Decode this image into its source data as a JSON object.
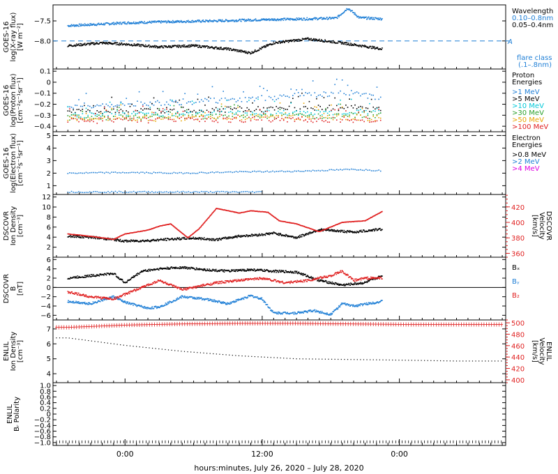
{
  "footer": {
    "xlabel": "hours:minutes, July 26, 2020 – July 28, 2020"
  },
  "time_axis": {
    "ticks": [
      "0:00",
      "12:00",
      "0:00"
    ],
    "tick_hours": [
      0,
      12,
      24
    ]
  },
  "colors": {
    "black": "#000000",
    "blue": "#1f7fd6",
    "cyan": "#00c8d8",
    "green": "#2aa02a",
    "orange": "#e8a400",
    "red": "#e02020",
    "magenta": "#e000e0"
  },
  "chart_data": [
    {
      "panel": "goes-xray",
      "type": "line",
      "ylabel": [
        "GOES-16",
        "log(X-ray flux)",
        "[W m⁻²]"
      ],
      "ylim": [
        -8.7,
        -7.1
      ],
      "yticks": [
        -7.5,
        -8.0
      ],
      "legend_title": "Wavelength",
      "legend": [
        {
          "name": "0.10–0.8nm",
          "color": "#1f7fd6"
        },
        {
          "name": "0.05–0.4nm",
          "color": "#000000"
        }
      ],
      "extra_labels": [
        "A",
        "flare class",
        "(.1–.8nm)"
      ],
      "threshold": {
        "value": -8.0,
        "label": "A"
      },
      "series": [
        {
          "name": "0.10–0.8nm",
          "color": "#1f7fd6",
          "x": [
            -5,
            -2,
            0,
            4,
            8,
            12,
            16,
            18.5,
            19.5,
            20.5,
            22.5
          ],
          "y": [
            -7.62,
            -7.58,
            -7.55,
            -7.52,
            -7.5,
            -7.47,
            -7.45,
            -7.43,
            -7.18,
            -7.42,
            -7.45
          ]
        },
        {
          "name": "0.05–0.4nm",
          "color": "#000000",
          "x": [
            -5,
            -2,
            0,
            3,
            6,
            9,
            11,
            13,
            16,
            19,
            22.5
          ],
          "y": [
            -8.12,
            -8.05,
            -8.08,
            -8.15,
            -8.12,
            -8.2,
            -8.3,
            -8.05,
            -7.95,
            -8.05,
            -8.2
          ]
        }
      ]
    },
    {
      "panel": "goes-proton",
      "type": "scatter",
      "ylabel": [
        "GOES-16",
        "log(Proton flux)",
        "[cm⁻²s⁻¹sr⁻¹]"
      ],
      "ylim": [
        -0.45,
        0.12
      ],
      "yticks": [
        0.1,
        0.0,
        -0.1,
        -0.2,
        -0.3,
        -0.4
      ],
      "legend_title": "Proton Energies",
      "legend": [
        {
          "name": ">1 MeV",
          "color": "#1f7fd6"
        },
        {
          "name": ">5 MeV",
          "color": "#000000"
        },
        {
          "name": ">10 MeV",
          "color": "#00c8d8"
        },
        {
          "name": ">30 MeV",
          "color": "#2aa02a"
        },
        {
          "name": ">50 MeV",
          "color": "#e8a400"
        },
        {
          "name": ">100 MeV",
          "color": "#e02020"
        }
      ],
      "series": [
        {
          "name": ">1 MeV",
          "color": "#1f7fd6",
          "x": [
            -5,
            0,
            5,
            10,
            15,
            20,
            22.5
          ],
          "y": [
            -0.22,
            -0.2,
            -0.18,
            -0.16,
            -0.12,
            -0.1,
            -0.15
          ]
        },
        {
          "name": ">5 MeV",
          "color": "#000000",
          "x": [
            -5,
            0,
            5,
            10,
            15,
            20,
            22.5
          ],
          "y": [
            -0.27,
            -0.26,
            -0.25,
            -0.25,
            -0.24,
            -0.23,
            -0.25
          ]
        },
        {
          "name": ">10 MeV",
          "color": "#00c8d8",
          "x": [
            -5,
            0,
            5,
            10,
            15,
            20,
            22.5
          ],
          "y": [
            -0.3,
            -0.29,
            -0.29,
            -0.28,
            -0.28,
            -0.27,
            -0.28
          ]
        },
        {
          "name": ">30 MeV",
          "color": "#2aa02a",
          "x": [
            -5,
            0,
            5,
            10,
            15,
            20,
            22.5
          ],
          "y": [
            -0.32,
            -0.32,
            -0.31,
            -0.31,
            -0.31,
            -0.3,
            -0.31
          ]
        },
        {
          "name": ">50 MeV",
          "color": "#e8a400",
          "x": [
            -5,
            0,
            5,
            10,
            15,
            20,
            22.5
          ],
          "y": [
            -0.33,
            -0.33,
            -0.33,
            -0.32,
            -0.32,
            -0.32,
            -0.33
          ]
        },
        {
          "name": ">100 MeV",
          "color": "#e02020",
          "x": [
            -5,
            0,
            5,
            10,
            15,
            20,
            22.5
          ],
          "y": [
            -0.35,
            -0.35,
            -0.34,
            -0.34,
            -0.34,
            -0.34,
            -0.35
          ]
        }
      ]
    },
    {
      "panel": "goes-electron",
      "type": "scatter",
      "ylabel": [
        "GOES-16",
        "log(Electron flux)",
        "[cm⁻²s⁻¹sr⁻¹]"
      ],
      "ylim": [
        0.3,
        5.3
      ],
      "yticks": [
        5,
        4,
        3,
        2,
        1
      ],
      "legend_title": "Electron Energies",
      "legend": [
        {
          "name": ">0.8 MeV",
          "color": "#000000"
        },
        {
          "name": ">2 MeV",
          "color": "#1f7fd6"
        },
        {
          "name": ">4 MeV",
          "color": "#e000e0"
        }
      ],
      "threshold": {
        "value": 5
      },
      "series": [
        {
          "name": ">2 MeV",
          "color": "#1f7fd6",
          "x": [
            -5,
            0,
            5,
            10,
            15,
            20,
            22.5
          ],
          "y": [
            2.0,
            2.05,
            2.0,
            2.1,
            2.15,
            2.3,
            2.2
          ]
        },
        {
          "name": ">2 MeV (low)",
          "color": "#1f7fd6",
          "x": [
            -5,
            0,
            5,
            10,
            12
          ],
          "y": [
            0.5,
            0.5,
            0.5,
            0.5,
            0.5
          ]
        }
      ]
    },
    {
      "panel": "dscovr-plasma",
      "type": "line",
      "ylabel": [
        "DSCOVR",
        "Ion Density",
        "[cm⁻³]"
      ],
      "ylim": [
        0,
        12.5
      ],
      "yticks": [
        12,
        10,
        8,
        6,
        4,
        2
      ],
      "ylabel_right": [
        "DSCOVR",
        "Velocity",
        "[km/s]"
      ],
      "ylim_right": [
        355,
        436
      ],
      "yticks_right": [
        420,
        400,
        380,
        360
      ],
      "series": [
        {
          "name": "Ion Density",
          "color": "#000000",
          "axis": "left",
          "x": [
            -5,
            -3,
            -1,
            0,
            2,
            4,
            6,
            8,
            10,
            12,
            13,
            15,
            17,
            20,
            22.5
          ],
          "y": [
            4.2,
            4.0,
            3.5,
            3.2,
            3.3,
            3.6,
            3.8,
            3.5,
            4.2,
            4.5,
            4.8,
            3.9,
            5.5,
            5.0,
            5.6
          ]
        },
        {
          "name": "Velocity",
          "color": "#e02020",
          "axis": "right",
          "x": [
            -5,
            -3,
            -1,
            0,
            2,
            3,
            4,
            5.5,
            6.5,
            8,
            10,
            11,
            12.5,
            13.5,
            15,
            17,
            19,
            21,
            22.5
          ],
          "y": [
            385,
            382,
            378,
            385,
            390,
            395,
            398,
            380,
            392,
            418,
            412,
            415,
            413,
            402,
            398,
            388,
            400,
            402,
            414
          ]
        }
      ]
    },
    {
      "panel": "dscovr-mag",
      "type": "line",
      "ylabel": [
        "DSCOVR",
        "B",
        "[nT]"
      ],
      "ylim": [
        -7,
        6.5
      ],
      "yticks": [
        6,
        4,
        2,
        0,
        -2,
        -4,
        -6
      ],
      "legend": [
        {
          "name": "Bₓ",
          "color": "#000000"
        },
        {
          "name": "Bᵧ",
          "color": "#1f7fd6"
        },
        {
          "name": "B₂",
          "color": "#e02020"
        }
      ],
      "series": [
        {
          "name": "Bx",
          "color": "#000000",
          "x": [
            -5,
            -3,
            -1,
            0,
            1.5,
            3,
            5,
            7,
            9,
            11,
            13,
            15,
            17,
            19,
            21,
            22.5
          ],
          "y": [
            2.0,
            2.5,
            3.0,
            1.0,
            3.5,
            4.0,
            4.3,
            3.8,
            3.5,
            3.8,
            3.5,
            3.3,
            1.5,
            0.5,
            1.0,
            2.5
          ]
        },
        {
          "name": "By",
          "color": "#1f7fd6",
          "x": [
            -5,
            -3,
            -1,
            0,
            2,
            3,
            5,
            7,
            9,
            11,
            12,
            13,
            15,
            16.5,
            18,
            19,
            20,
            22.5
          ],
          "y": [
            -3.0,
            -3.5,
            -2.0,
            -3.2,
            -4.5,
            -4.2,
            -2.0,
            -2.5,
            -3.5,
            -1.8,
            -2.5,
            -5.5,
            -5.5,
            -5.0,
            -5.8,
            -3.5,
            -4.0,
            -3.0
          ]
        },
        {
          "name": "Bz",
          "color": "#e02020",
          "x": [
            -5,
            -3,
            -1,
            0,
            2,
            3,
            5,
            7,
            8,
            10,
            12,
            14,
            16,
            18,
            19,
            20,
            21,
            22.5
          ],
          "y": [
            -1.0,
            -2.0,
            -2.5,
            -1.5,
            0.5,
            1.5,
            -0.5,
            0.5,
            1.0,
            1.5,
            2.0,
            1.0,
            1.5,
            2.5,
            3.5,
            1.5,
            2.0,
            2.0
          ]
        }
      ]
    },
    {
      "panel": "enlil-plasma",
      "type": "line",
      "ylabel": [
        "ENLIL",
        "Ion Density",
        "[cm⁻³]"
      ],
      "ylim": [
        3.4,
        7.6
      ],
      "yticks": [
        7,
        6,
        5,
        4
      ],
      "ylabel_right": [
        "ENLIL",
        "Velocity",
        "[km/s]"
      ],
      "ylim_right": [
        395,
        505
      ],
      "yticks_right": [
        500,
        480,
        460,
        440,
        420,
        400
      ],
      "series": [
        {
          "name": "Ion Density",
          "color": "#000000",
          "axis": "left",
          "x": [
            -5,
            0,
            5,
            10,
            15,
            20,
            25,
            29
          ],
          "y": [
            6.4,
            5.9,
            5.5,
            5.2,
            5.0,
            4.95,
            4.9,
            4.85
          ]
        },
        {
          "name": "Velocity",
          "color": "#e02020",
          "axis": "right",
          "x": [
            -5,
            0,
            5,
            10,
            15,
            20,
            25,
            29
          ],
          "y": [
            492,
            496,
            498,
            499,
            499,
            498,
            497,
            497
          ]
        }
      ]
    },
    {
      "panel": "enlil-polarity",
      "type": "line",
      "ylabel": [
        "ENLIL",
        "Bᵣ Polarity"
      ],
      "ylim": [
        -1.1,
        1.1
      ],
      "yticks": [
        1.0,
        0.8,
        0.6,
        0.4,
        0.2,
        0.0,
        -0.2,
        -0.4,
        -0.6,
        -0.8,
        -1.0
      ],
      "series": [
        {
          "name": "Polarity",
          "color": "#000000",
          "x": [
            -5,
            0,
            5,
            10,
            15,
            20,
            25,
            29
          ],
          "y": [
            -1.0,
            -1.0,
            -1.0,
            -1.0,
            -1.0,
            -1.0,
            -1.0,
            -1.0
          ]
        }
      ]
    }
  ]
}
